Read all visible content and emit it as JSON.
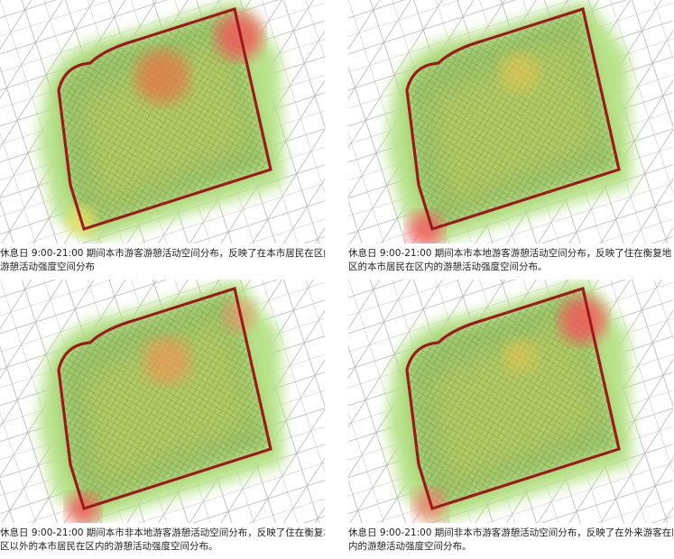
{
  "panels": [
    {
      "caption": [
        "休息日 9:00-21:00 期间本市游客游憩活动空间分布，反映了在本市居民在区内的",
        "游憩活动强度空间分布"
      ]
    },
    {
      "caption": [
        "休息日 9:00-21:00 期间本市本地游客游憩活动空间分布，反映了住在衡复地",
        "区的本市居民在区内的游憩活动强度空间分布。"
      ]
    },
    {
      "caption": [
        "休息日 9:00-21:00 期间本市非本地游客游憩活动空间分布，反映了住在衡复地",
        "区以外的本市居民在区内的游憩活动强度空间分布。"
      ]
    },
    {
      "caption": [
        "休息日 9:00-21:00 期间非本市游客游憩活动空间分布，反映了在外来游客在区",
        "内的游憩活动强度空间分布。"
      ]
    }
  ]
}
